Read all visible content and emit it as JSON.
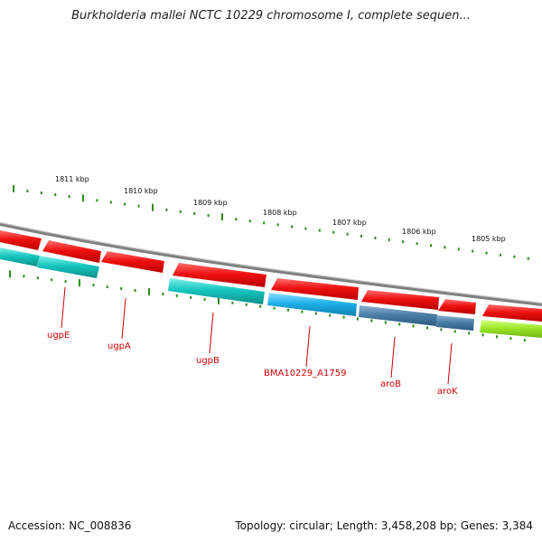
{
  "title": "Burkholderia mallei NCTC 10229 chromosome I, complete sequen...",
  "footer": {
    "accession": "Accession: NC_008836",
    "summary": "Topology: circular; Length: 3,458,208 bp; Genes: 3,384"
  },
  "kbp_ticks": [
    "1811 kbp",
    "1810 kbp",
    "1809 kbp",
    "1808 kbp",
    "1807 kbp",
    "1806 kbp",
    "1805 kbp"
  ],
  "genes": [
    {
      "label": "ugpE"
    },
    {
      "label": "ugpA"
    },
    {
      "label": "ugpB"
    },
    {
      "label": "BMA10229_A1759"
    },
    {
      "label": "aroB"
    },
    {
      "label": "aroK"
    }
  ],
  "colors": {
    "forward_cds": "#ee1111",
    "teal_cds": "#16c6bf",
    "blue_cds": "#1fb2ea",
    "steel_cds": "#4a7fa8",
    "green_cds": "#9ee82a",
    "backbone": "#808080",
    "ticks": "#2e8b1a",
    "label": "#cc0000"
  }
}
